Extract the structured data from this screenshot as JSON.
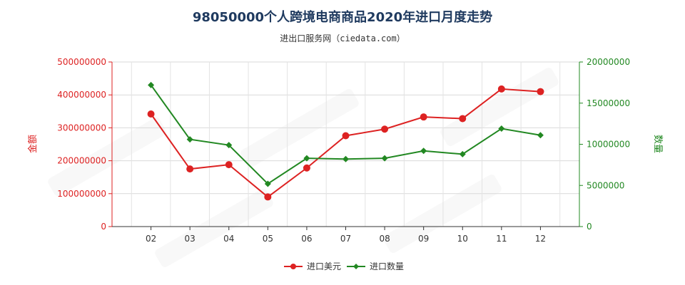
{
  "chart_data": {
    "type": "line",
    "title": "98050000个人跨境电商商品2020年进口月度走势",
    "subtitle": "进出口服务网（ciedata.com）",
    "categories": [
      "02",
      "03",
      "04",
      "05",
      "06",
      "07",
      "08",
      "09",
      "10",
      "11",
      "12"
    ],
    "y_left": {
      "label": "金额",
      "range": [
        0,
        500000000
      ],
      "ticks": [
        "0",
        "100000000",
        "200000000",
        "300000000",
        "400000000",
        "500000000"
      ],
      "color": "#dd2222"
    },
    "y_right": {
      "label": "数量",
      "range": [
        0,
        20000000
      ],
      "ticks": [
        "0",
        "5000000",
        "10000000",
        "15000000",
        "20000000"
      ],
      "color": "#228822"
    },
    "series": [
      {
        "name": "进口美元",
        "axis": "left",
        "color": "#dd2222",
        "values": [
          342000000,
          175000000,
          188000000,
          90000000,
          178000000,
          276000000,
          296000000,
          333000000,
          328000000,
          418000000,
          410000000
        ]
      },
      {
        "name": "进口数量",
        "axis": "right",
        "color": "#228822",
        "values": [
          17200000,
          10600000,
          9900000,
          5200000,
          8300000,
          8200000,
          8300000,
          9200000,
          8800000,
          11900000,
          11100000
        ]
      }
    ],
    "grid": true,
    "legend_position": "bottom"
  }
}
